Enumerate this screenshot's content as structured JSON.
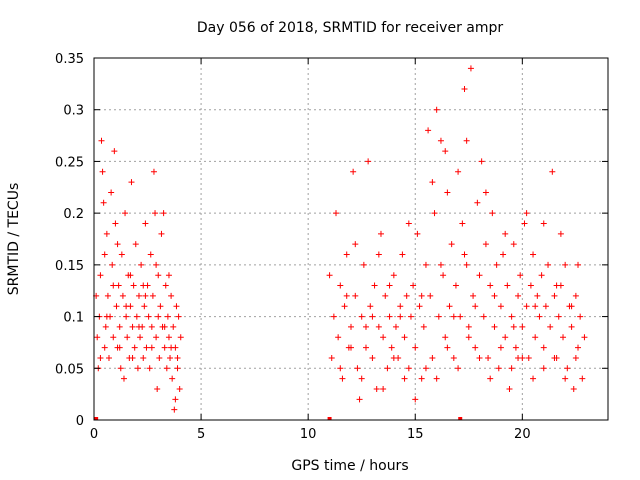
{
  "chart_data": {
    "type": "scatter",
    "title": "Day 056 of 2018, SRMTID for receiver ampr",
    "xlabel": "GPS time / hours",
    "ylabel": "SRMTID / TECUs",
    "xlim": [
      0,
      24
    ],
    "ylim": [
      0,
      0.35
    ],
    "xticks": [
      0,
      5,
      10,
      15,
      20
    ],
    "xtick_labels": [
      "0",
      "5",
      "10",
      "15",
      "20"
    ],
    "yticks": [
      0,
      0.05,
      0.1,
      0.15,
      0.2,
      0.25,
      0.3,
      0.35
    ],
    "ytick_labels": [
      "0",
      "0.05",
      "0.1",
      "0.15",
      "0.2",
      "0.25",
      "0.3",
      "0.35"
    ],
    "grid": true,
    "marker": "+",
    "color": "#ff0000",
    "series_name": "SRMTID",
    "gap_markers_x": [
      0.1,
      11.0,
      17.1
    ],
    "points": [
      [
        0.1,
        0.12
      ],
      [
        0.15,
        0.08
      ],
      [
        0.2,
        0.05
      ],
      [
        0.25,
        0.1
      ],
      [
        0.3,
        0.14
      ],
      [
        0.35,
        0.27
      ],
      [
        0.4,
        0.24
      ],
      [
        0.45,
        0.21
      ],
      [
        0.5,
        0.07
      ],
      [
        0.55,
        0.09
      ],
      [
        0.6,
        0.18
      ],
      [
        0.65,
        0.12
      ],
      [
        0.7,
        0.06
      ],
      [
        0.75,
        0.1
      ],
      [
        0.8,
        0.22
      ],
      [
        0.85,
        0.15
      ],
      [
        0.9,
        0.08
      ],
      [
        0.95,
        0.26
      ],
      [
        1.0,
        0.19
      ],
      [
        1.05,
        0.11
      ],
      [
        1.1,
        0.07
      ],
      [
        1.15,
        0.13
      ],
      [
        1.2,
        0.09
      ],
      [
        1.25,
        0.05
      ],
      [
        1.3,
        0.16
      ],
      [
        1.35,
        0.12
      ],
      [
        1.4,
        0.04
      ],
      [
        1.45,
        0.2
      ],
      [
        1.5,
        0.1
      ],
      [
        1.55,
        0.08
      ],
      [
        1.6,
        0.14
      ],
      [
        1.65,
        0.06
      ],
      [
        1.7,
        0.11
      ],
      [
        1.75,
        0.23
      ],
      [
        1.8,
        0.09
      ],
      [
        1.85,
        0.13
      ],
      [
        1.9,
        0.07
      ],
      [
        1.95,
        0.17
      ],
      [
        2.0,
        0.1
      ],
      [
        2.05,
        0.05
      ],
      [
        2.1,
        0.12
      ],
      [
        2.15,
        0.08
      ],
      [
        2.2,
        0.15
      ],
      [
        2.25,
        0.09
      ],
      [
        2.3,
        0.06
      ],
      [
        2.35,
        0.11
      ],
      [
        2.4,
        0.19
      ],
      [
        2.45,
        0.07
      ],
      [
        2.5,
        0.13
      ],
      [
        2.55,
        0.1
      ],
      [
        2.6,
        0.05
      ],
      [
        2.65,
        0.16
      ],
      [
        2.7,
        0.09
      ],
      [
        2.75,
        0.12
      ],
      [
        2.8,
        0.24
      ],
      [
        2.85,
        0.2
      ],
      [
        2.9,
        0.08
      ],
      [
        2.95,
        0.03
      ],
      [
        3.0,
        0.14
      ],
      [
        3.05,
        0.06
      ],
      [
        3.1,
        0.11
      ],
      [
        3.15,
        0.18
      ],
      [
        3.2,
        0.09
      ],
      [
        3.25,
        0.2
      ],
      [
        3.3,
        0.07
      ],
      [
        3.35,
        0.13
      ],
      [
        3.4,
        0.05
      ],
      [
        3.45,
        0.1
      ],
      [
        3.5,
        0.08
      ],
      [
        3.55,
        0.06
      ],
      [
        3.6,
        0.12
      ],
      [
        3.65,
        0.04
      ],
      [
        3.7,
        0.09
      ],
      [
        3.75,
        0.01
      ],
      [
        3.8,
        0.07
      ],
      [
        3.85,
        0.11
      ],
      [
        3.9,
        0.05
      ],
      [
        3.95,
        0.1
      ],
      [
        4.0,
        0.03
      ],
      [
        4.05,
        0.08
      ],
      [
        0.3,
        0.06
      ],
      [
        0.6,
        0.1
      ],
      [
        0.9,
        0.13
      ],
      [
        1.2,
        0.07
      ],
      [
        1.5,
        0.11
      ],
      [
        1.8,
        0.06
      ],
      [
        2.1,
        0.09
      ],
      [
        2.4,
        0.12
      ],
      [
        2.7,
        0.07
      ],
      [
        3.0,
        0.1
      ],
      [
        3.3,
        0.09
      ],
      [
        3.6,
        0.07
      ],
      [
        3.9,
        0.06
      ],
      [
        0.5,
        0.16
      ],
      [
        1.1,
        0.17
      ],
      [
        1.7,
        0.14
      ],
      [
        2.3,
        0.13
      ],
      [
        2.9,
        0.15
      ],
      [
        3.5,
        0.14
      ],
      [
        3.8,
        0.02
      ],
      [
        11.0,
        0.14
      ],
      [
        11.1,
        0.06
      ],
      [
        11.2,
        0.1
      ],
      [
        11.3,
        0.2
      ],
      [
        11.4,
        0.08
      ],
      [
        11.5,
        0.13
      ],
      [
        11.6,
        0.04
      ],
      [
        11.7,
        0.11
      ],
      [
        11.8,
        0.16
      ],
      [
        11.9,
        0.07
      ],
      [
        12.0,
        0.09
      ],
      [
        12.1,
        0.24
      ],
      [
        12.2,
        0.12
      ],
      [
        12.3,
        0.05
      ],
      [
        12.4,
        0.02
      ],
      [
        12.5,
        0.1
      ],
      [
        12.6,
        0.15
      ],
      [
        12.7,
        0.07
      ],
      [
        12.8,
        0.25
      ],
      [
        12.9,
        0.11
      ],
      [
        13.0,
        0.06
      ],
      [
        13.1,
        0.13
      ],
      [
        13.2,
        0.03
      ],
      [
        13.3,
        0.09
      ],
      [
        13.4,
        0.18
      ],
      [
        13.5,
        0.08
      ],
      [
        13.6,
        0.12
      ],
      [
        13.7,
        0.05
      ],
      [
        13.8,
        0.1
      ],
      [
        13.9,
        0.07
      ],
      [
        14.0,
        0.14
      ],
      [
        14.1,
        0.09
      ],
      [
        14.2,
        0.06
      ],
      [
        14.3,
        0.11
      ],
      [
        14.4,
        0.16
      ],
      [
        14.5,
        0.08
      ],
      [
        14.6,
        0.12
      ],
      [
        14.7,
        0.05
      ],
      [
        14.8,
        0.1
      ],
      [
        14.9,
        0.13
      ],
      [
        15.0,
        0.07
      ],
      [
        15.1,
        0.18
      ],
      [
        15.2,
        0.11
      ],
      [
        15.3,
        0.04
      ],
      [
        15.4,
        0.09
      ],
      [
        15.5,
        0.15
      ],
      [
        15.6,
        0.28
      ],
      [
        15.7,
        0.12
      ],
      [
        15.8,
        0.06
      ],
      [
        15.9,
        0.2
      ],
      [
        16.0,
        0.3
      ],
      [
        16.1,
        0.1
      ],
      [
        16.2,
        0.27
      ],
      [
        16.3,
        0.14
      ],
      [
        16.4,
        0.08
      ],
      [
        16.5,
        0.22
      ],
      [
        16.6,
        0.11
      ],
      [
        16.7,
        0.17
      ],
      [
        16.8,
        0.06
      ],
      [
        16.9,
        0.13
      ],
      [
        17.0,
        0.24
      ],
      [
        17.1,
        0.1
      ],
      [
        17.2,
        0.19
      ],
      [
        17.3,
        0.32
      ],
      [
        17.4,
        0.15
      ],
      [
        17.5,
        0.09
      ],
      [
        17.6,
        0.34
      ],
      [
        17.7,
        0.12
      ],
      [
        17.8,
        0.07
      ],
      [
        17.9,
        0.21
      ],
      [
        18.0,
        0.14
      ],
      [
        18.1,
        0.25
      ],
      [
        18.2,
        0.1
      ],
      [
        18.3,
        0.17
      ],
      [
        18.4,
        0.06
      ],
      [
        18.5,
        0.13
      ],
      [
        18.6,
        0.2
      ],
      [
        18.7,
        0.09
      ],
      [
        18.8,
        0.15
      ],
      [
        18.9,
        0.05
      ],
      [
        19.0,
        0.11
      ],
      [
        19.1,
        0.16
      ],
      [
        19.2,
        0.08
      ],
      [
        19.3,
        0.13
      ],
      [
        19.4,
        0.03
      ],
      [
        19.5,
        0.1
      ],
      [
        19.6,
        0.17
      ],
      [
        19.7,
        0.07
      ],
      [
        19.8,
        0.12
      ],
      [
        19.9,
        0.14
      ],
      [
        20.0,
        0.09
      ],
      [
        20.1,
        0.19
      ],
      [
        20.2,
        0.11
      ],
      [
        20.3,
        0.06
      ],
      [
        20.4,
        0.13
      ],
      [
        20.5,
        0.16
      ],
      [
        20.6,
        0.08
      ],
      [
        20.7,
        0.12
      ],
      [
        20.8,
        0.1
      ],
      [
        20.9,
        0.14
      ],
      [
        21.0,
        0.07
      ],
      [
        21.1,
        0.11
      ],
      [
        21.2,
        0.15
      ],
      [
        21.3,
        0.09
      ],
      [
        21.4,
        0.24
      ],
      [
        21.5,
        0.12
      ],
      [
        21.6,
        0.06
      ],
      [
        21.7,
        0.1
      ],
      [
        21.8,
        0.13
      ],
      [
        21.9,
        0.08
      ],
      [
        22.0,
        0.15
      ],
      [
        22.1,
        0.05
      ],
      [
        22.2,
        0.11
      ],
      [
        22.3,
        0.09
      ],
      [
        22.4,
        0.03
      ],
      [
        22.5,
        0.12
      ],
      [
        22.6,
        0.07
      ],
      [
        22.7,
        0.1
      ],
      [
        22.8,
        0.04
      ],
      [
        22.9,
        0.08
      ],
      [
        11.5,
        0.05
      ],
      [
        12.0,
        0.07
      ],
      [
        12.5,
        0.04
      ],
      [
        13.0,
        0.1
      ],
      [
        13.5,
        0.03
      ],
      [
        14.0,
        0.06
      ],
      [
        14.5,
        0.04
      ],
      [
        15.0,
        0.02
      ],
      [
        15.5,
        0.05
      ],
      [
        16.0,
        0.04
      ],
      [
        16.5,
        0.07
      ],
      [
        17.0,
        0.05
      ],
      [
        17.5,
        0.08
      ],
      [
        18.0,
        0.06
      ],
      [
        18.5,
        0.04
      ],
      [
        19.0,
        0.07
      ],
      [
        19.5,
        0.05
      ],
      [
        20.0,
        0.06
      ],
      [
        20.5,
        0.04
      ],
      [
        21.0,
        0.05
      ],
      [
        21.5,
        0.06
      ],
      [
        22.0,
        0.04
      ],
      [
        22.5,
        0.06
      ],
      [
        12.2,
        0.17
      ],
      [
        13.3,
        0.16
      ],
      [
        14.7,
        0.19
      ],
      [
        15.8,
        0.23
      ],
      [
        16.4,
        0.26
      ],
      [
        17.4,
        0.27
      ],
      [
        18.3,
        0.22
      ],
      [
        19.2,
        0.18
      ],
      [
        20.2,
        0.2
      ],
      [
        21.0,
        0.19
      ],
      [
        21.8,
        0.18
      ],
      [
        22.6,
        0.15
      ],
      [
        11.8,
        0.12
      ],
      [
        12.7,
        0.09
      ],
      [
        13.8,
        0.13
      ],
      [
        14.3,
        0.1
      ],
      [
        15.3,
        0.12
      ],
      [
        16.8,
        0.1
      ],
      [
        17.8,
        0.11
      ],
      [
        18.7,
        0.12
      ],
      [
        19.6,
        0.09
      ],
      [
        20.6,
        0.11
      ],
      [
        21.6,
        0.13
      ],
      [
        22.3,
        0.11
      ],
      [
        16.2,
        0.15
      ],
      [
        17.3,
        0.16
      ],
      [
        19.8,
        0.06
      ]
    ]
  }
}
